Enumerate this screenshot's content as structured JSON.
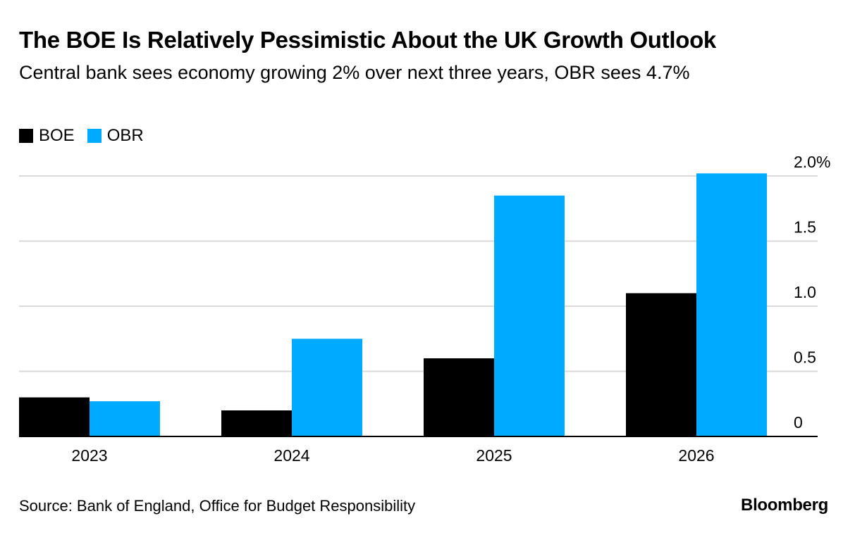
{
  "chart_data": {
    "type": "bar",
    "title": "The BOE Is Relatively Pessimistic About the UK Growth Outlook",
    "subtitle": "Central bank sees economy growing 2% over next three years, OBR sees 4.7%",
    "categories": [
      "2023",
      "2024",
      "2025",
      "2026"
    ],
    "series": [
      {
        "name": "BOE",
        "color": "#000000",
        "values": [
          0.3,
          0.2,
          0.6,
          1.1
        ]
      },
      {
        "name": "OBR",
        "color": "#00aaff",
        "values": [
          0.27,
          0.75,
          1.85,
          2.02
        ]
      }
    ],
    "xlabel": "",
    "ylabel": "",
    "ylim": [
      0,
      2.0
    ],
    "yticks": [
      0,
      0.5,
      1.0,
      1.5,
      2.0
    ],
    "ytick_labels": [
      "0",
      "0.5",
      "1.0",
      "1.5",
      "2.0%"
    ],
    "grid": true,
    "legend_position": "top-left",
    "source": "Source: Bank of England, Office for Budget Responsibility",
    "brand": "Bloomberg"
  }
}
